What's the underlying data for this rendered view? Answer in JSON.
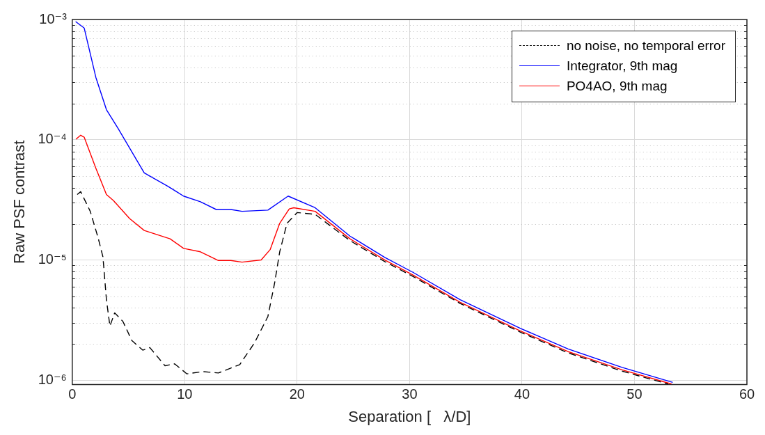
{
  "chart_data": {
    "type": "line",
    "xlabel": "Separation [   λ/D]",
    "ylabel": "Raw PSF contrast",
    "xlim": [
      0,
      60
    ],
    "xticks": [
      0,
      10,
      20,
      30,
      40,
      50,
      60
    ],
    "ylim": [
      9.2e-07,
      0.001
    ],
    "yticks": [
      {
        "value": 1e-06,
        "label": "10⁻⁶"
      },
      {
        "value": 1e-05,
        "label": "10⁻⁵"
      },
      {
        "value": 0.0001,
        "label": "10⁻⁴"
      },
      {
        "value": 0.001,
        "label": "10⁻³"
      }
    ],
    "log": "y",
    "grid": true,
    "legend": "top right",
    "marker": "none",
    "series": [
      {
        "name": "no noise, no temporal error",
        "color": "#000000",
        "line_style": "dashed",
        "x": [
          0.44,
          0.75,
          1.6,
          2.3,
          2.73,
          3.04,
          3.35,
          3.77,
          4.5,
          5.3,
          6.27,
          6.9,
          8.25,
          9.1,
          10.2,
          11.6,
          13.0,
          14.9,
          16.2,
          17.4,
          18.0,
          18.45,
          19.1,
          20.0,
          21.6,
          24.7,
          27.8,
          30.3,
          34.5,
          39.9,
          44.1,
          48.9,
          53.0
        ],
        "values": [
          3.5e-05,
          3.7e-05,
          2.54e-05,
          1.53e-05,
          1.06e-05,
          4.67e-06,
          2.82e-06,
          3.63e-06,
          3.09e-06,
          2.14e-06,
          1.78e-06,
          1.87e-06,
          1.32e-06,
          1.37e-06,
          1.13e-06,
          1.18e-06,
          1.15e-06,
          1.35e-06,
          2.04e-06,
          3.39e-06,
          6.45e-06,
          1.17e-05,
          2.02e-05,
          2.48e-05,
          2.4e-05,
          1.45e-05,
          9.7e-06,
          7.3e-06,
          4.35e-06,
          2.5e-06,
          1.69e-06,
          1.19e-06,
          9.3e-07
        ]
      },
      {
        "name": "Integrator, 9th mag",
        "color": "#0000ff",
        "line_style": "solid",
        "x": [
          0.3,
          1.06,
          2.1,
          3.04,
          4.08,
          6.4,
          8.5,
          9.9,
          11.4,
          12.8,
          14.1,
          15.1,
          17.4,
          19.2,
          21.6,
          24.7,
          27.8,
          30.3,
          34.5,
          39.9,
          44.1,
          48.9,
          53.4
        ],
        "values": [
          0.00096,
          0.00085,
          0.00033,
          0.000178,
          0.000124,
          5.3e-05,
          4.1e-05,
          3.4e-05,
          3.05e-05,
          2.63e-05,
          2.63e-05,
          2.54e-05,
          2.6e-05,
          3.4e-05,
          2.72e-05,
          1.58e-05,
          1.05e-05,
          7.9e-06,
          4.67e-06,
          2.69e-06,
          1.82e-06,
          1.28e-06,
          9.6e-07
        ]
      },
      {
        "name": "PO4AO, 9th mag",
        "color": "#ff0000",
        "line_style": "solid",
        "x": [
          0.33,
          0.75,
          1.06,
          2.1,
          3.04,
          3.67,
          5.1,
          6.4,
          8.7,
          9.9,
          11.4,
          13.0,
          14.1,
          15.1,
          16.8,
          17.6,
          18.45,
          19.3,
          19.7,
          21.6,
          24.7,
          27.8,
          30.3,
          34.5,
          39.9,
          44.1,
          48.9,
          53.3
        ],
        "values": [
          0.000101,
          0.000109,
          0.000105,
          5.8e-05,
          3.5e-05,
          3.12e-05,
          2.21e-05,
          1.76e-05,
          1.5e-05,
          1.25e-05,
          1.17e-05,
          9.9e-06,
          9.9e-06,
          9.6e-06,
          1e-05,
          1.22e-05,
          2.02e-05,
          2.66e-05,
          2.72e-05,
          2.54e-05,
          1.5e-05,
          1e-05,
          7.5e-06,
          4.45e-06,
          2.56e-06,
          1.73e-06,
          1.22e-06,
          9.3e-07
        ]
      }
    ]
  }
}
